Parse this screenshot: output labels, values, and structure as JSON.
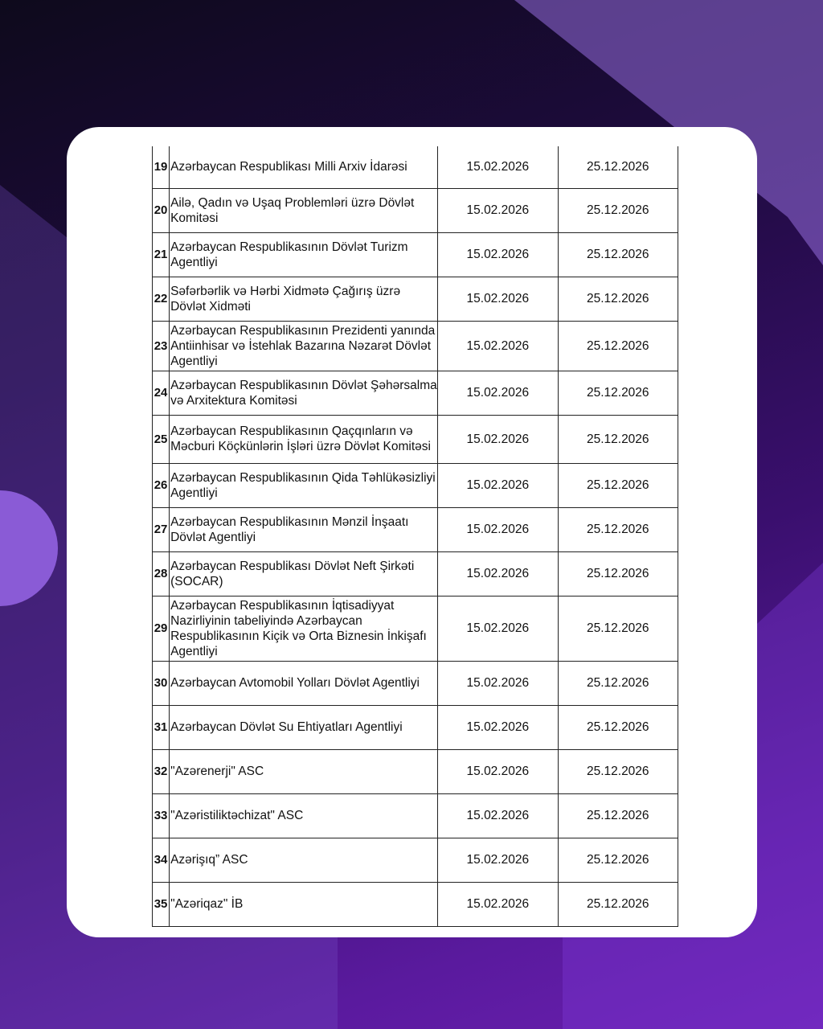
{
  "table": {
    "rows": [
      {
        "no": "19",
        "name": "Azərbaycan Respublikası Milli Arxiv İdarəsi",
        "start": "15.02.2026",
        "end": "25.12.2026"
      },
      {
        "no": "20",
        "name": "Ailə, Qadın və Uşaq Problemləri üzrə Dövlət Komitəsi",
        "start": "15.02.2026",
        "end": "25.12.2026"
      },
      {
        "no": "21",
        "name": "Azərbaycan Respublikasının Dövlət Turizm Agentliyi",
        "start": "15.02.2026",
        "end": "25.12.2026"
      },
      {
        "no": "22",
        "name": "Səfərbərlik və Hərbi Xidmətə Çağırış üzrə Dövlət Xidməti",
        "start": "15.02.2026",
        "end": "25.12.2026"
      },
      {
        "no": "23",
        "name": "Azərbaycan Respublikasının Prezidenti yanında Antiinhisar və İstehlak Bazarına Nəzarət Dövlət Agentliyi",
        "start": "15.02.2026",
        "end": "25.12.2026"
      },
      {
        "no": "24",
        "name": "Azərbaycan Respublikasının Dövlət Şəhərsalma və Arxitektura Komitəsi",
        "start": "15.02.2026",
        "end": "25.12.2026"
      },
      {
        "no": "25",
        "name": "Azərbaycan Respublikasının Qaçqınların və Məcburi Köçkünlərin İşləri üzrə Dövlət Komitəsi",
        "start": "15.02.2026",
        "end": "25.12.2026"
      },
      {
        "no": "26",
        "name": "Azərbaycan Respublikasının Qida Təhlükəsizliyi Agentliyi",
        "start": "15.02.2026",
        "end": "25.12.2026"
      },
      {
        "no": "27",
        "name": "Azərbaycan Respublikasının Mənzil İnşaatı Dövlət Agentliyi",
        "start": "15.02.2026",
        "end": "25.12.2026"
      },
      {
        "no": "28",
        "name": "Azərbaycan Respublikası Dövlət Neft Şirkəti (SOCAR)",
        "start": "15.02.2026",
        "end": "25.12.2026"
      },
      {
        "no": "29",
        "name": "Azərbaycan Respublikasının İqtisadiyyat Nazirliyinin tabeliyində Azərbaycan Respublikasının Kiçik və Orta Biznesin İnkişafı Agentliyi",
        "start": "15.02.2026",
        "end": "25.12.2026"
      },
      {
        "no": "30",
        "name": "Azərbaycan Avtomobil Yolları Dövlət Agentliyi",
        "start": "15.02.2026",
        "end": "25.12.2026"
      },
      {
        "no": "31",
        "name": "Azərbaycan Dövlət Su Ehtiyatları Agentliyi",
        "start": "15.02.2026",
        "end": "25.12.2026"
      },
      {
        "no": "32",
        "name": "\"Azərenerji\" ASC",
        "start": "15.02.2026",
        "end": "25.12.2026"
      },
      {
        "no": "33",
        "name": "\"Azəristiliktəchizat\" ASC",
        "start": "15.02.2026",
        "end": "25.12.2026"
      },
      {
        "no": "34",
        "name": "Azərişıq” ASC",
        "start": "15.02.2026",
        "end": "25.12.2026"
      },
      {
        "no": "35",
        "name": "\"Azəriqaz\" İB",
        "start": "15.02.2026",
        "end": "25.12.2026"
      }
    ]
  }
}
